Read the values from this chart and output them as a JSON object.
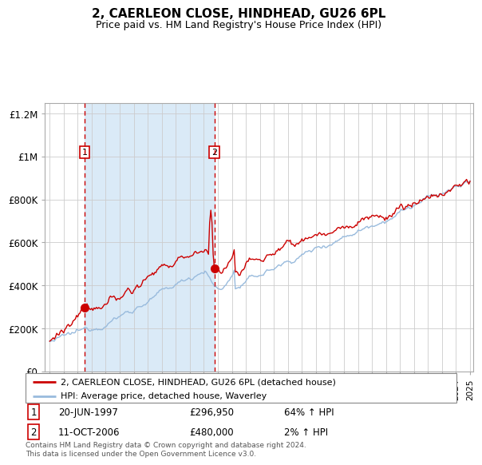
{
  "title": "2, CAERLEON CLOSE, HINDHEAD, GU26 6PL",
  "subtitle": "Price paid vs. HM Land Registry's House Price Index (HPI)",
  "title_fontsize": 11,
  "subtitle_fontsize": 9,
  "background_color": "#ffffff",
  "plot_bg_color": "#ffffff",
  "shaded_region_color": "#daeaf7",
  "grid_color": "#cccccc",
  "red_line_color": "#cc0000",
  "blue_line_color": "#99bbdd",
  "purchase1_month": 30,
  "purchase1_price": 296950,
  "purchase2_month": 141,
  "purchase2_price": 480000,
  "ylim": [
    0,
    1250000
  ],
  "yticks": [
    0,
    200000,
    400000,
    600000,
    800000,
    1000000,
    1200000
  ],
  "ytick_labels": [
    "£0",
    "£200K",
    "£400K",
    "£600K",
    "£800K",
    "£1M",
    "£1.2M"
  ],
  "legend_line1": "2, CAERLEON CLOSE, HINDHEAD, GU26 6PL (detached house)",
  "legend_line2": "HPI: Average price, detached house, Waverley",
  "table_row1": [
    "1",
    "20-JUN-1997",
    "£296,950",
    "64% ↑ HPI"
  ],
  "table_row2": [
    "2",
    "11-OCT-2006",
    "£480,000",
    "2% ↑ HPI"
  ],
  "footer": "Contains HM Land Registry data © Crown copyright and database right 2024.\nThis data is licensed under the Open Government Licence v3.0.",
  "xstart_year": 1995,
  "xend_year": 2025,
  "n_months": 361
}
